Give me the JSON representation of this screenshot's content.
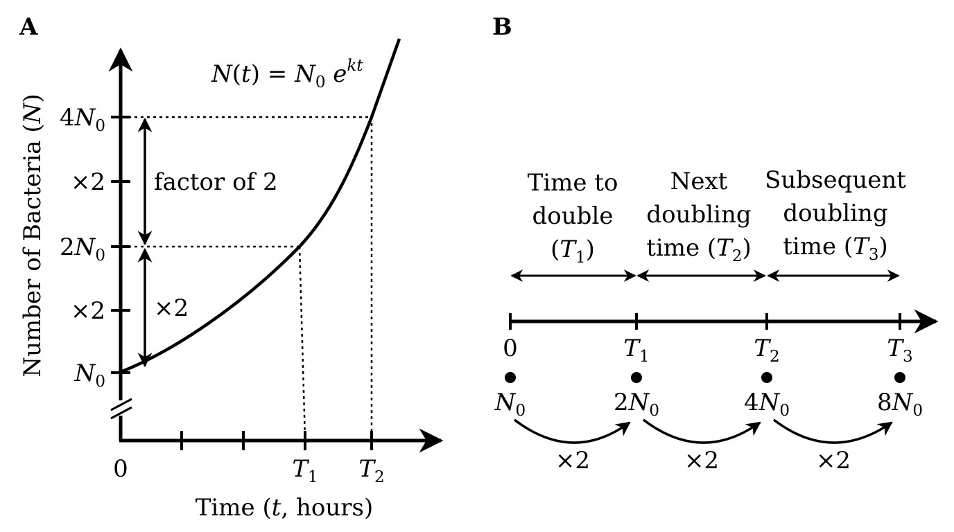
{
  "panel_a": {
    "letter": "A",
    "y_axis_label": "Number of Bacteria",
    "y_axis_var": "N",
    "x_axis_label": "Time",
    "x_axis_var": "t",
    "x_axis_unit": ", hours",
    "x_origin_label": "0",
    "y_ticks": [
      {
        "coef": "",
        "base": "N",
        "sub": "0"
      },
      {
        "text": "×2"
      },
      {
        "coef": "2",
        "base": "N",
        "sub": "0"
      },
      {
        "text": "×2"
      },
      {
        "coef": "4",
        "base": "N",
        "sub": "0"
      }
    ],
    "x_ticks": [
      {
        "base": "T",
        "sub": "1"
      },
      {
        "base": "T",
        "sub": "2"
      }
    ],
    "equation": {
      "lhs": "N",
      "arg": "t",
      "eq": "=",
      "base": "N",
      "sub": "0",
      "exp_base": "e",
      "exp": "kt"
    },
    "bracket_upper_label": "factor of 2",
    "bracket_lower_label": "×2"
  },
  "panel_b": {
    "letter": "B",
    "intervals": [
      {
        "lines": [
          "Time to",
          "double"
        ],
        "last": {
          "pre": "(",
          "var": "T",
          "sub": "1",
          "post": ")"
        }
      },
      {
        "lines": [
          "Next",
          "doubling"
        ],
        "last": {
          "pre": "time (",
          "var": "T",
          "sub": "2",
          "post": ")"
        }
      },
      {
        "lines": [
          "Subsequent",
          "doubling"
        ],
        "last": {
          "pre": "time (",
          "var": "T",
          "sub": "3",
          "post": ")"
        }
      }
    ],
    "time_labels": [
      {
        "base": "0",
        "sub": ""
      },
      {
        "base": "T",
        "sub": "1"
      },
      {
        "base": "T",
        "sub": "2"
      },
      {
        "base": "T",
        "sub": "3"
      }
    ],
    "counts": [
      {
        "coef": "",
        "base": "N",
        "sub": "0"
      },
      {
        "coef": "2",
        "base": "N",
        "sub": "0"
      },
      {
        "coef": "4",
        "base": "N",
        "sub": "0"
      },
      {
        "coef": "8",
        "base": "N",
        "sub": "0"
      }
    ],
    "multipliers": [
      "×2",
      "×2",
      "×2"
    ]
  }
}
